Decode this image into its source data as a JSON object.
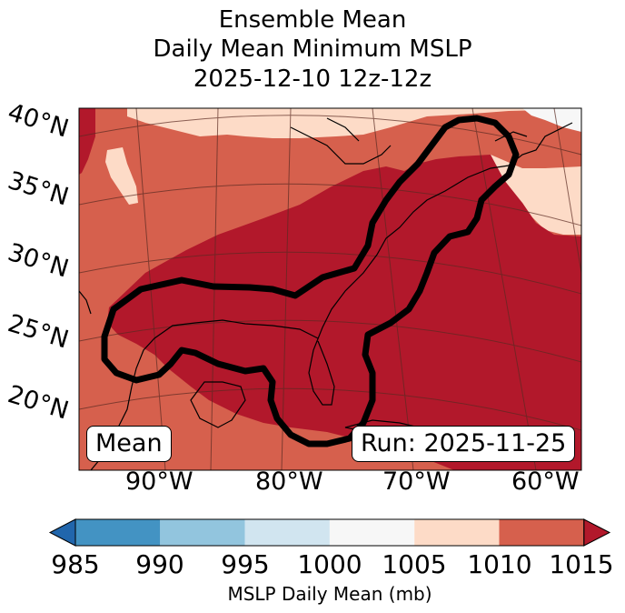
{
  "title": {
    "line1": "Ensemble Mean",
    "line2": "Daily Mean Minimum MSLP",
    "line3": "2025-12-10 12z-12z"
  },
  "map": {
    "lat_labels": [
      "40°N",
      "35°N",
      "30°N",
      "25°N",
      "20°N"
    ],
    "lon_labels": [
      "90°W",
      "80°W",
      "70°W",
      "60°W"
    ],
    "label_left": "Mean",
    "label_right": "Run: 2025-11-25"
  },
  "colorbar": {
    "ticks": [
      "985",
      "990",
      "995",
      "1000",
      "1005",
      "1010",
      "1015"
    ],
    "label": "MSLP Daily Mean (mb)",
    "colors": {
      "below": "#2166ac",
      "985_990": "#4393c3",
      "990_995": "#92c5de",
      "995_1000": "#d1e5f0",
      "1000_1005": "#f7f7f7",
      "1005_1010": "#fddbc7",
      "1010_1015": "#d6604d",
      "above": "#b2182b"
    }
  }
}
